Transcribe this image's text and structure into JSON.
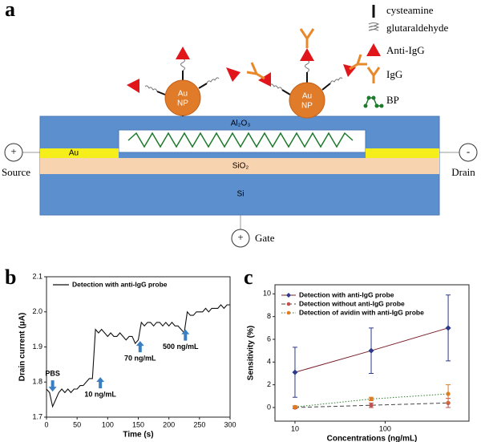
{
  "panels": {
    "a": "a",
    "b": "b",
    "c": "c"
  },
  "diagram": {
    "legend": [
      "cysteamine",
      "glutaraldehyde",
      "Anti-IgG",
      "IgG",
      "BP"
    ],
    "nanoparticle": [
      "Au",
      "NP"
    ],
    "layers": {
      "top": "Al₂O₃",
      "contact": "Au",
      "middle": "SiO₂",
      "substrate": "Si"
    },
    "source": {
      "sign": "+",
      "label": "Source"
    },
    "drain": {
      "sign": "-",
      "label": "Drain"
    },
    "gate": {
      "sign": "+",
      "label": "Gate"
    }
  },
  "chart_data": [
    {
      "type": "line",
      "xlabel": "Time (s)",
      "ylabel": "Drain current (μA)",
      "series": [
        {
          "name": "Detection with anti-IgG probe",
          "color": "#111111",
          "x": [
            0,
            5,
            10,
            15,
            20,
            25,
            30,
            35,
            40,
            45,
            50,
            55,
            60,
            65,
            70,
            75,
            80,
            85,
            90,
            95,
            100,
            105,
            110,
            115,
            120,
            125,
            130,
            135,
            140,
            145,
            150,
            155,
            160,
            165,
            170,
            175,
            180,
            185,
            190,
            195,
            200,
            205,
            210,
            215,
            220,
            225,
            230,
            235,
            240,
            245,
            250,
            255,
            260,
            265,
            270,
            275,
            280,
            285,
            290,
            295,
            300
          ],
          "values": [
            1.78,
            1.77,
            1.73,
            1.75,
            1.77,
            1.78,
            1.77,
            1.78,
            1.77,
            1.78,
            1.78,
            1.79,
            1.79,
            1.8,
            1.81,
            1.81,
            1.95,
            1.94,
            1.95,
            1.94,
            1.93,
            1.94,
            1.93,
            1.93,
            1.94,
            1.93,
            1.92,
            1.93,
            1.93,
            1.91,
            1.92,
            1.97,
            1.96,
            1.97,
            1.97,
            1.96,
            1.97,
            1.97,
            1.96,
            1.97,
            1.96,
            1.97,
            1.96,
            1.96,
            1.95,
            1.94,
            2.0,
            1.99,
            1.99,
            2.0,
            2.0,
            2.0,
            2.01,
            2.0,
            2.01,
            2.01,
            2.01,
            2.02,
            2.01,
            2.02,
            2.02
          ]
        }
      ],
      "xlim": [
        0,
        300
      ],
      "xticks": [
        0,
        50,
        100,
        150,
        200,
        250,
        300
      ],
      "ylim": [
        1.7,
        2.1
      ],
      "yticks": [
        1.7,
        1.8,
        1.9,
        {
          "value": 2,
          "label": "2.0"
        },
        2.1
      ],
      "annotations": [
        {
          "text": "PBS",
          "x": 10,
          "y": 1.773,
          "dir": "down",
          "color": "#3a7fc1"
        },
        {
          "text": "10 ng/mL",
          "x": 88,
          "y": 1.814,
          "dir": "up",
          "color": "#3a7fc1"
        },
        {
          "text": "70 ng/mL",
          "x": 153,
          "y": 1.917,
          "dir": "up",
          "color": "#3a7fc1"
        },
        {
          "text": "500 ng/mL",
          "x": 227,
          "y": 1.95,
          "dir": "up",
          "color": "#3a7fc1"
        }
      ]
    },
    {
      "type": "scatter",
      "xlabel": "Concentrations (ng/mL)",
      "ylabel": "Sensitivity (%)",
      "xscale": "log",
      "x": [
        10,
        70,
        500
      ],
      "series": [
        {
          "name": "Detection with anti-IgG probe",
          "color": "#2b3a8c",
          "line_color": "#7a1f2b",
          "dash": "solid",
          "marker": "diamond",
          "values": [
            3.1,
            5.0,
            7.0
          ],
          "errors": [
            2.2,
            2.0,
            2.9
          ]
        },
        {
          "name": "Detection without anti-IgG probe",
          "color": "#c0504d",
          "line_color": "#444444",
          "dash": "dashed",
          "marker": "circle",
          "values": [
            0.0,
            0.2,
            0.4
          ],
          "errors": [
            0.1,
            0.2,
            0.4
          ]
        },
        {
          "name": "Detection of avidin with anti-IgG probe",
          "color": "#e07b20",
          "line_color": "#2e7d32",
          "dash": "dotted",
          "marker": "circle",
          "values": [
            0.05,
            0.75,
            1.2
          ],
          "errors": [
            0.1,
            0.15,
            0.8
          ]
        }
      ],
      "xlim": [
        6,
        850
      ],
      "xticks": [
        10,
        100
      ],
      "ylim": [
        -1.2,
        10.8
      ],
      "yticks": [
        0,
        2,
        4,
        6,
        8,
        10
      ]
    }
  ]
}
